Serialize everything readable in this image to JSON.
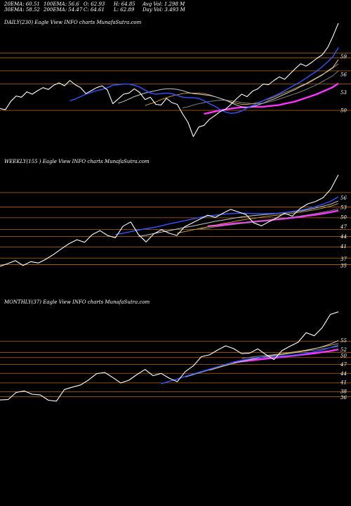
{
  "header": {
    "row1": [
      {
        "label": "20EMA: 60.51"
      },
      {
        "label": "100EMA: 56.6"
      },
      {
        "label": "O: 62.93"
      },
      {
        "label": "H: 64.85"
      },
      {
        "label": "Avg Vol: 1.298 M"
      }
    ],
    "row2": [
      {
        "label": "30EMA: 58.52"
      },
      {
        "label": "200EMA: 54.47"
      },
      {
        "label": "C: 64.61"
      },
      {
        "label": "L: 62.89"
      },
      {
        "label": "Day Vol: 3.493 M"
      }
    ]
  },
  "chart_data": [
    {
      "type": "line",
      "title": "DAILY(230) Eagle  View  INFO charts MunafaSutra.com",
      "ylim": [
        44,
        64
      ],
      "yticks": [
        59,
        56,
        53,
        50
      ],
      "gridlines": [
        59.6,
        58.8,
        56.6,
        54.4,
        50
      ],
      "series": [
        {
          "role": "price",
          "color": "#ffffff",
          "values": [
            50.3,
            50.1,
            51.5,
            52.4,
            52.2,
            53.1,
            52.7,
            53.3,
            53.8,
            53.5,
            54.2,
            54.6,
            54.1,
            55.0,
            54.3,
            53.8,
            52.8,
            53.3,
            53.8,
            54.1,
            53.4,
            51.1,
            51.9,
            52.7,
            52.9,
            53.6,
            53.0,
            51.8,
            52.2,
            51.0,
            50.9,
            52.0,
            51.3,
            51.0,
            49.4,
            48.0,
            45.6,
            47.2,
            47.5,
            48.5,
            49.1,
            49.8,
            50.2,
            51.0,
            51.9,
            52.7,
            52.3,
            53.2,
            53.6,
            54.4,
            54.3,
            55.0,
            55.6,
            55.2,
            56.1,
            57.0,
            57.8,
            57.4,
            58.0,
            58.7,
            59.3,
            60.5,
            62.4,
            64.6
          ]
        },
        {
          "role": "ema20",
          "color": "#3355ff",
          "values": [
            51.6,
            51.9,
            52.3,
            52.7,
            53.0,
            53.3,
            53.5,
            53.8,
            54.2,
            54.3,
            54.4,
            54.4,
            54.2,
            53.9,
            53.4,
            52.9,
            52.7,
            52.8,
            52.9,
            52.8,
            52.5,
            52.2,
            52.1,
            52.1,
            52.0,
            51.6,
            51.1,
            50.7,
            50.1,
            49.7,
            49.5,
            49.6,
            49.9,
            50.4,
            50.8,
            51.2,
            51.6,
            52.0,
            52.4,
            52.8,
            53.3,
            53.8,
            54.3,
            54.8,
            55.4,
            56.0,
            56.6,
            57.3,
            58.1,
            59.0,
            60.5
          ]
        },
        {
          "role": "ema30",
          "color": "#c8c8c8",
          "values": [
            51.2,
            51.5,
            51.9,
            52.3,
            52.6,
            52.9,
            53.1,
            53.3,
            53.5,
            53.6,
            53.6,
            53.5,
            53.3,
            53.0,
            52.8,
            52.7,
            52.6,
            52.5,
            52.3,
            52.0,
            51.7,
            51.3,
            50.9,
            50.6,
            50.5,
            50.6,
            50.9,
            51.2,
            51.6,
            51.9,
            52.3,
            52.7,
            53.1,
            53.5,
            54.0,
            54.4,
            54.9,
            55.4,
            55.9,
            56.6,
            57.2,
            58.5
          ]
        },
        {
          "role": "ema50",
          "color": "#d6a23a",
          "values": [
            50.8,
            51.1,
            51.4,
            51.8,
            52.1,
            52.4,
            52.6,
            52.8,
            52.9,
            52.9,
            52.9,
            52.8,
            52.6,
            52.3,
            52.0,
            51.7,
            51.4,
            51.2,
            51.0,
            51.0,
            51.1,
            51.3,
            51.6,
            51.9,
            52.2,
            52.6,
            53.0,
            53.3,
            53.7,
            54.1,
            54.5,
            55.0,
            55.5,
            56.0,
            56.5,
            57.1,
            57.8
          ]
        },
        {
          "role": "ema100",
          "color": "#8a8a8a",
          "values": [
            50.4,
            50.6,
            50.9,
            51.1,
            51.3,
            51.5,
            51.6,
            51.7,
            51.7,
            51.6,
            51.5,
            51.3,
            51.2,
            51.1,
            51.1,
            51.2,
            51.4,
            51.6,
            51.9,
            52.2,
            52.5,
            52.8,
            53.1,
            53.5,
            53.9,
            54.3,
            54.8,
            55.3,
            55.8,
            56.6
          ]
        },
        {
          "role": "ema200",
          "color": "#ff33ff",
          "values": [
            49.4,
            49.6,
            49.8,
            50.0,
            50.1,
            50.3,
            50.4,
            50.5,
            50.5,
            50.6,
            50.6,
            50.6,
            50.7,
            50.8,
            50.9,
            51.1,
            51.3,
            51.5,
            51.8,
            52.1,
            52.4,
            52.7,
            53.1,
            53.5,
            53.9,
            54.5
          ]
        }
      ]
    },
    {
      "type": "line",
      "title": "WEEKLY(155                              ) Eagle  View  INFO charts MunafaSutra.com",
      "ylim": [
        28,
        65
      ],
      "yticks": [
        56,
        53,
        50,
        47,
        44,
        41,
        37,
        35
      ],
      "gridlines": [
        57.6,
        53.1,
        49.8,
        46.2,
        44.0,
        40.7,
        37.3,
        35.3
      ],
      "series": [
        {
          "role": "price",
          "color": "#ffffff",
          "values": [
            34.8,
            35.6,
            36.5,
            35.0,
            36.2,
            35.8,
            37.0,
            38.5,
            40.2,
            41.8,
            43.0,
            42.2,
            44.6,
            45.8,
            44.3,
            43.6,
            47.2,
            48.5,
            44.6,
            42.3,
            44.8,
            46.1,
            45.0,
            44.3,
            47.0,
            48.2,
            49.4,
            50.6,
            49.9,
            51.2,
            52.4,
            51.6,
            50.8,
            48.2,
            47.3,
            48.6,
            49.8,
            51.2,
            50.3,
            52.6,
            54.1,
            54.8,
            56.0,
            58.6,
            63.1
          ]
        },
        {
          "role": "ema20",
          "color": "#3355ff",
          "values": [
            44.6,
            45.0,
            45.5,
            46.0,
            46.4,
            46.8,
            47.3,
            47.9,
            48.4,
            48.9,
            49.4,
            49.9,
            50.3,
            50.6,
            50.9,
            51.1,
            51.2,
            51.2,
            51.1,
            51.1,
            51.1,
            51.2,
            51.4,
            51.7,
            52.1,
            52.6,
            53.2,
            54.0,
            54.9,
            56.3
          ]
        },
        {
          "role": "ema30",
          "color": "#c8c8c8",
          "values": [
            44.0,
            44.4,
            44.9,
            45.4,
            45.8,
            46.3,
            46.8,
            47.2,
            47.7,
            48.2,
            48.7,
            49.1,
            49.5,
            49.9,
            50.2,
            50.5,
            50.7,
            50.9,
            51.1,
            51.3,
            51.6,
            51.9,
            52.3,
            52.8,
            53.4,
            54.0,
            55.0
          ]
        },
        {
          "role": "ema50",
          "color": "#d6a23a",
          "values": [
            45.0,
            45.5,
            46.0,
            46.5,
            47.0,
            47.5,
            48.0,
            48.4,
            48.9,
            49.3,
            49.6,
            50.0,
            50.3,
            50.6,
            50.9,
            51.2,
            51.5,
            51.9,
            52.3,
            52.8,
            53.4,
            54.2
          ]
        },
        {
          "role": "ema100",
          "color": "#8a8a8a",
          "values": [
            46.3,
            46.6,
            47.0,
            47.3,
            47.6,
            47.9,
            48.2,
            48.5,
            48.8,
            49.1,
            49.4,
            49.7,
            50.0,
            50.3,
            50.7,
            51.1,
            51.5,
            52.0,
            52.6
          ]
        },
        {
          "role": "ema200",
          "color": "#ff33ff",
          "values": [
            47.2,
            47.4,
            47.6,
            47.9,
            48.1,
            48.3,
            48.6,
            48.8,
            49.0,
            49.3,
            49.5,
            49.8,
            50.1,
            50.4,
            50.7,
            51.1,
            51.5,
            52.0
          ]
        }
      ]
    },
    {
      "type": "line",
      "title": "MONTHLY(37) Eagle  View  INFO charts MunafaSutra.com",
      "ylim": [
        25,
        65
      ],
      "yticks": [
        55,
        52,
        50,
        47,
        44,
        41,
        38,
        36
      ],
      "gridlines": [
        54.7,
        51.0,
        49.3,
        47.0,
        44.0,
        40.8,
        37.8,
        36.2
      ],
      "series": [
        {
          "role": "price",
          "color": "#ffffff",
          "values": [
            35.1,
            35.2,
            37.6,
            38.1,
            37.0,
            36.8,
            35.0,
            34.7,
            38.6,
            39.4,
            40.1,
            41.8,
            43.9,
            44.3,
            42.6,
            40.8,
            41.7,
            43.6,
            45.3,
            43.2,
            44.0,
            42.4,
            41.2,
            44.6,
            46.5,
            49.6,
            50.2,
            51.8,
            53.2,
            52.3,
            50.6,
            50.8,
            52.2,
            50.3,
            48.6,
            51.6,
            53.1,
            54.4,
            57.6,
            56.6,
            59.3,
            63.7,
            64.6
          ]
        },
        {
          "role": "ema20",
          "color": "#3355ff",
          "values": [
            40.5,
            41.3,
            42.1,
            43.0,
            43.8,
            44.6,
            45.4,
            46.2,
            47.0,
            47.8,
            48.4,
            48.9,
            49.3,
            49.5,
            49.6,
            49.8,
            50.0,
            50.3,
            50.7,
            51.2,
            51.8,
            52.6,
            53.5
          ]
        },
        {
          "role": "ema30",
          "color": "#c8c8c8",
          "values": [
            42.8,
            43.6,
            44.4,
            45.2,
            46.0,
            46.7,
            47.4,
            48.0,
            48.6,
            49.1,
            49.6,
            50.0,
            50.3,
            50.7,
            51.1,
            51.6,
            52.2,
            52.9,
            53.8,
            55.0
          ]
        },
        {
          "role": "ema50",
          "color": "#d6a23a",
          "values": [
            45.0,
            45.8,
            46.6,
            47.3,
            48.0,
            48.6,
            49.2,
            49.7,
            50.2,
            50.6,
            51.0,
            51.4,
            51.8,
            52.3,
            52.8,
            53.4,
            54.0
          ]
        },
        {
          "role": "ema100",
          "color": "#8a8a8a",
          "values": [
            49.0,
            49.4,
            49.7,
            50.0,
            50.3,
            50.6,
            50.9,
            51.2,
            51.5,
            51.8,
            52.2,
            52.6,
            53.0
          ]
        },
        {
          "role": "ema200",
          "color": "#ff33ff",
          "values": [
            47.7,
            48.0,
            48.3,
            48.6,
            48.9,
            49.2,
            49.5,
            49.8,
            50.1,
            50.4,
            50.7,
            51.1,
            51.5,
            52.0
          ]
        }
      ]
    }
  ]
}
